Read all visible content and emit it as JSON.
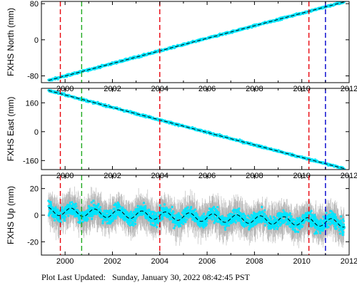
{
  "footer": {
    "label": "Plot Last Updated:",
    "datetime": "Sunday, January 30, 2022 08:42:45 PST"
  },
  "colors": {
    "data": "#00e5ff",
    "error_bars": "#b4b4b4",
    "fit": "#000000",
    "marker_equipment": "#e8000b",
    "marker_green": "#1faa1f",
    "marker_blue": "#0000cc"
  },
  "chart_data": [
    {
      "type": "scatter",
      "ylabel": "FXHS North (mm)",
      "xlim": [
        1999.0,
        2012.0
      ],
      "ylim": [
        -95,
        85
      ],
      "yticks": [
        -80,
        0,
        80
      ],
      "xticks": [
        2000,
        2002,
        2004,
        2006,
        2008,
        2010,
        2012
      ],
      "grid": false,
      "trend": {
        "start": {
          "x": 1999.3,
          "y": -90
        },
        "end": {
          "x": 2011.8,
          "y": 84
        }
      },
      "markers": [
        {
          "x": 1999.8,
          "color": "red"
        },
        {
          "x": 2000.7,
          "color": "green"
        },
        {
          "x": 2004.0,
          "color": "red"
        },
        {
          "x": 2010.3,
          "color": "red"
        },
        {
          "x": 2011.0,
          "color": "blue"
        }
      ]
    },
    {
      "type": "scatter",
      "ylabel": "FXHS East (mm)",
      "xlim": [
        1999.0,
        2012.0
      ],
      "ylim": [
        -210,
        240
      ],
      "yticks": [
        -160,
        0,
        160
      ],
      "xticks": [
        2000,
        2002,
        2004,
        2006,
        2008,
        2010,
        2012
      ],
      "grid": false,
      "trend": {
        "start": {
          "x": 1999.3,
          "y": 228
        },
        "end": {
          "x": 2011.8,
          "y": -205
        }
      },
      "markers": [
        {
          "x": 1999.8,
          "color": "red"
        },
        {
          "x": 2000.7,
          "color": "green"
        },
        {
          "x": 2004.0,
          "color": "red"
        },
        {
          "x": 2010.3,
          "color": "red"
        },
        {
          "x": 2011.0,
          "color": "blue"
        }
      ]
    },
    {
      "type": "scatter",
      "ylabel": "FXHS Up (mm)",
      "xlim": [
        1999.0,
        2012.0
      ],
      "ylim": [
        -30,
        30
      ],
      "yticks": [
        -20,
        0,
        20
      ],
      "xticks": [
        2000,
        2002,
        2004,
        2006,
        2008,
        2010,
        2012
      ],
      "grid": false,
      "trend": {
        "start": {
          "x": 1999.3,
          "y": 3
        },
        "end": {
          "x": 2011.8,
          "y": -6
        }
      },
      "seasonal_amplitude_mm": 3,
      "noise_mm": 5,
      "error_bar_mm": 10,
      "markers": [
        {
          "x": 1999.8,
          "color": "red"
        },
        {
          "x": 2000.7,
          "color": "green"
        },
        {
          "x": 2004.0,
          "color": "red"
        },
        {
          "x": 2010.3,
          "color": "red"
        },
        {
          "x": 2011.0,
          "color": "blue"
        }
      ]
    }
  ]
}
